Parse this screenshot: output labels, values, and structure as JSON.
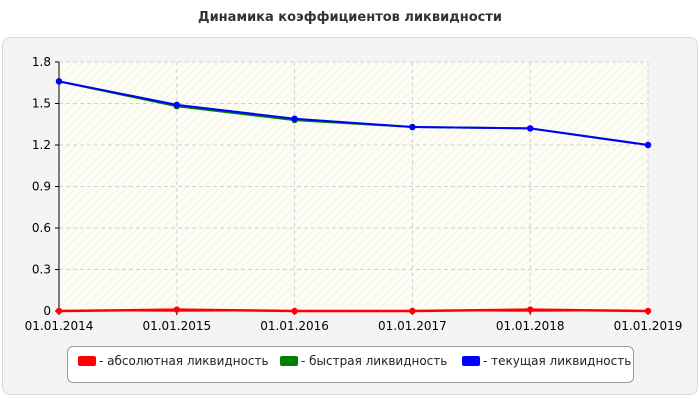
{
  "colors": {
    "absolute": "#ff0000",
    "quick": "#008000",
    "current": "#0000ff",
    "grid": "#d0d0d0",
    "axis": "#000000"
  },
  "chart_data": {
    "type": "line",
    "title": "Динамика коэффициентов ликвидности",
    "xlabel": "",
    "ylabel": "",
    "categories": [
      "01.01.2014",
      "01.01.2015",
      "01.01.2016",
      "01.01.2017",
      "01.01.2018",
      "01.01.2019"
    ],
    "ylim": [
      0,
      1.8
    ],
    "yticks": [
      "0",
      "0.3",
      "0.6",
      "0.9",
      "1.2",
      "1.5",
      "1.8"
    ],
    "grid": true,
    "legend_position": "bottom",
    "series": [
      {
        "name": "- абсолютная ликвидность",
        "color_key": "absolute",
        "values": [
          0.0,
          0.01,
          0.0,
          0.0,
          0.01,
          0.0
        ]
      },
      {
        "name": "- быстрая ликвидность",
        "color_key": "quick",
        "values": [
          1.66,
          1.48,
          1.38,
          1.33,
          1.32,
          1.2
        ]
      },
      {
        "name": "- текущая ликвидность",
        "color_key": "current",
        "values": [
          1.66,
          1.49,
          1.39,
          1.33,
          1.32,
          1.2
        ]
      }
    ]
  }
}
